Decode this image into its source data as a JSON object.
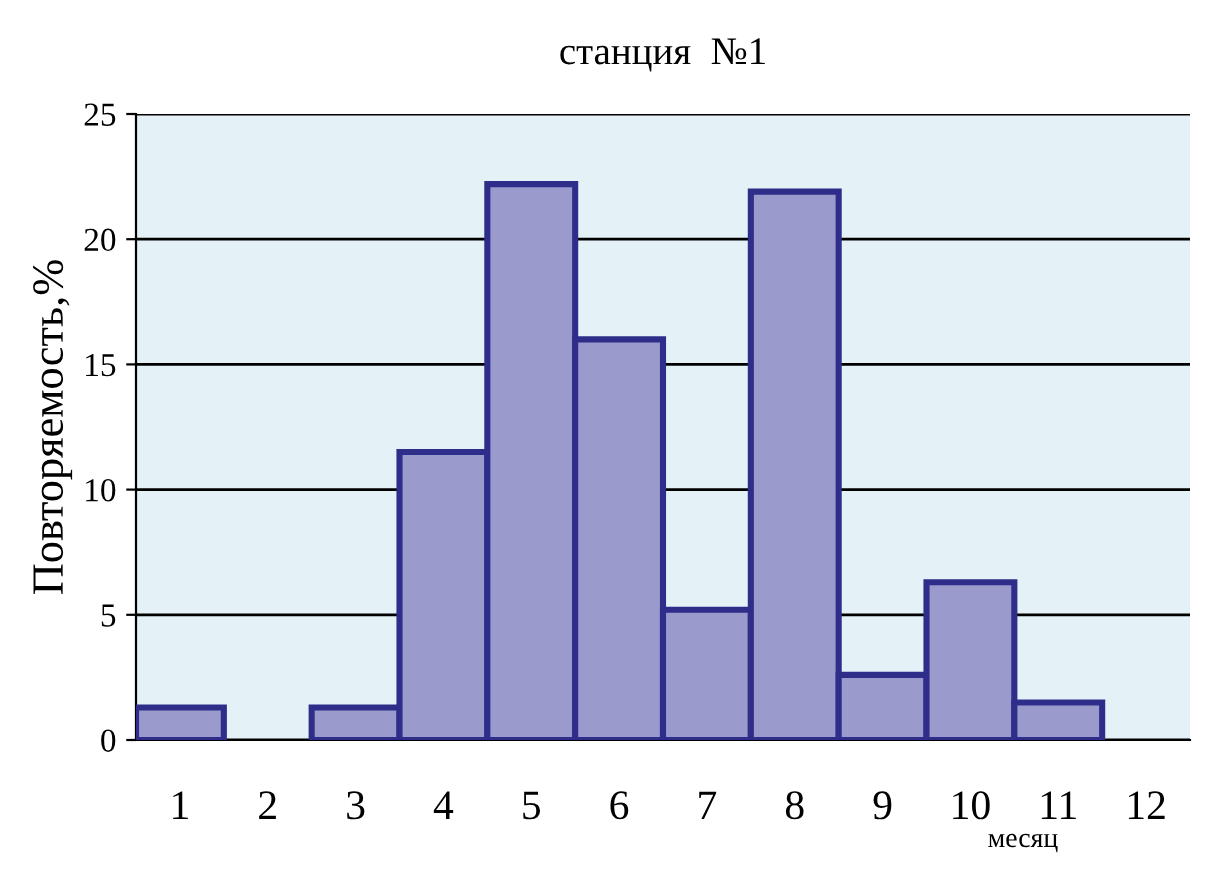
{
  "chart_data": {
    "type": "bar",
    "title": "станция  №1",
    "xlabel": "месяц",
    "ylabel": "Повторяемость,%",
    "categories": [
      "1",
      "2",
      "3",
      "4",
      "5",
      "6",
      "7",
      "8",
      "9",
      "10",
      "11",
      "12"
    ],
    "values": [
      1.3,
      0,
      1.3,
      11.5,
      22.2,
      16.0,
      5.2,
      21.9,
      2.6,
      6.3,
      1.5,
      0
    ],
    "color": "#9a9acc",
    "ylim": [
      0,
      25
    ],
    "yticks": [
      0,
      5,
      10,
      15,
      20,
      25
    ],
    "grid": "y",
    "legend": false
  }
}
